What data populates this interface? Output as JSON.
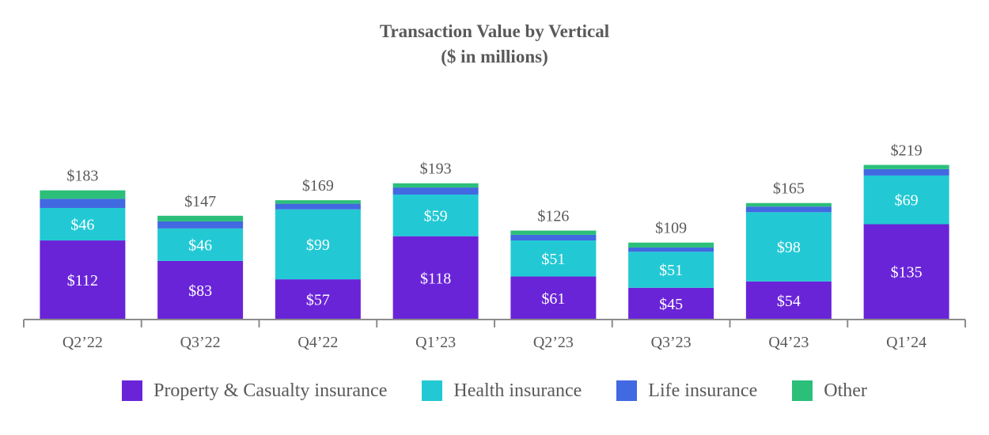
{
  "chart_data": {
    "type": "bar",
    "stacked": true,
    "title": "Transaction Value by Vertical",
    "subtitle": "($ in millions)",
    "categories": [
      "Q2’22",
      "Q3’22",
      "Q4’22",
      "Q1’23",
      "Q2’23",
      "Q3’23",
      "Q4’23",
      "Q1’24"
    ],
    "totals": [
      "$183",
      "$147",
      "$169",
      "$193",
      "$126",
      "$109",
      "$165",
      "$219"
    ],
    "total_values": [
      183,
      147,
      169,
      193,
      126,
      109,
      165,
      219
    ],
    "series": [
      {
        "name": "Property & Casualty insurance",
        "color": "#6a24d8",
        "values": [
          112,
          83,
          57,
          118,
          61,
          45,
          54,
          135
        ],
        "labels": [
          "$112",
          "$83",
          "$57",
          "$118",
          "$61",
          "$45",
          "$54",
          "$135"
        ]
      },
      {
        "name": "Health insurance",
        "color": "#22c9d4",
        "values": [
          46,
          46,
          99,
          59,
          51,
          51,
          98,
          69
        ],
        "labels": [
          "$46",
          "$46",
          "$99",
          "$59",
          "$51",
          "$51",
          "$98",
          "$69"
        ]
      },
      {
        "name": "Life insurance",
        "color": "#4169e1",
        "values": [
          13,
          10,
          8,
          10,
          8,
          6,
          8,
          9
        ]
      },
      {
        "name": "Other",
        "color": "#2bbf7a",
        "values": [
          12,
          8,
          5,
          6,
          6,
          7,
          5,
          6
        ]
      }
    ],
    "ylim": [
      0,
      240
    ],
    "xlabel": "",
    "ylabel": "",
    "grid": false,
    "legend_position": "bottom"
  }
}
